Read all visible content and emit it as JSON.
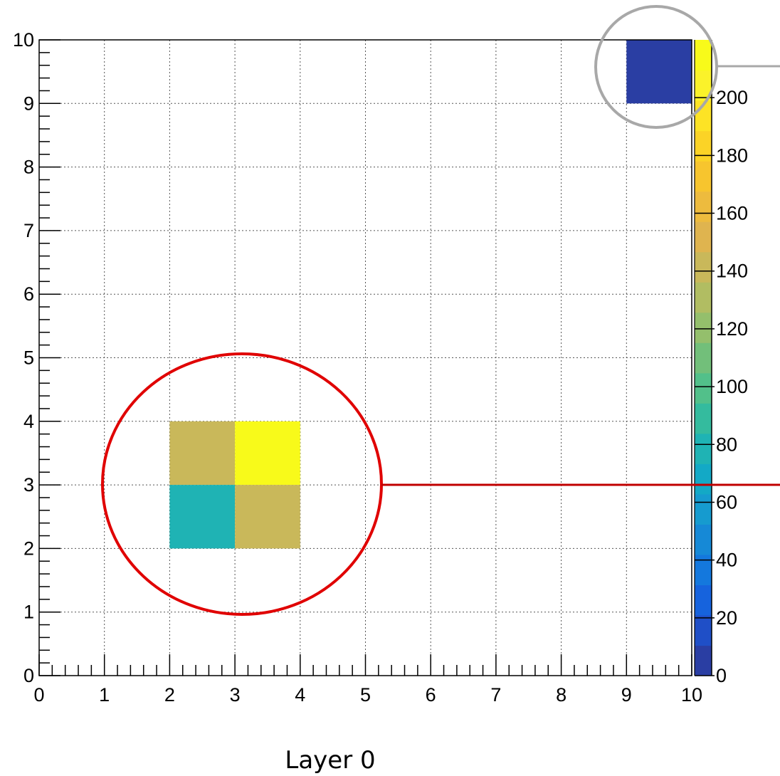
{
  "chart_data": {
    "type": "heatmap",
    "title": "",
    "caption": "Layer 0",
    "xlabel": "",
    "ylabel": "",
    "xlim": [
      0,
      10
    ],
    "ylim": [
      0,
      10
    ],
    "x_ticks": [
      "0",
      "1",
      "2",
      "3",
      "4",
      "5",
      "6",
      "7",
      "8",
      "9",
      "10"
    ],
    "y_ticks": [
      "0",
      "1",
      "2",
      "3",
      "4",
      "5",
      "6",
      "7",
      "8",
      "9",
      "10"
    ],
    "grid": true,
    "cells": [
      {
        "x": [
          2,
          3
        ],
        "y": [
          3,
          4
        ],
        "value": 140
      },
      {
        "x": [
          3,
          4
        ],
        "y": [
          3,
          4
        ],
        "value": 215
      },
      {
        "x": [
          2,
          3
        ],
        "y": [
          2,
          3
        ],
        "value": 75
      },
      {
        "x": [
          3,
          4
        ],
        "y": [
          2,
          3
        ],
        "value": 140
      },
      {
        "x": [
          9,
          10
        ],
        "y": [
          9,
          10
        ],
        "value": 1
      }
    ],
    "colorbar": {
      "min": 0,
      "max": 220,
      "ticks": [
        "0",
        "20",
        "40",
        "60",
        "80",
        "100",
        "120",
        "140",
        "160",
        "180",
        "200"
      ],
      "palette": [
        "#2a3ea3",
        "#1f4fc7",
        "#1663dd",
        "#1478dd",
        "#1689d6",
        "#169bcf",
        "#13a9c6",
        "#1fb3b4",
        "#34bb9e",
        "#52c08a",
        "#72bf7a",
        "#94bf6c",
        "#b1bd62",
        "#c9b85a",
        "#dfb44f",
        "#edbb3e",
        "#f7c52e",
        "#fbd326",
        "#fde325",
        "#fbf22a",
        "#f8fa1a"
      ]
    },
    "annotations": [
      {
        "shape": "circle",
        "color": "#e00000",
        "encloses": "cells x 2-4, y 2-4"
      },
      {
        "shape": "circle",
        "color": "#a0a0a0",
        "encloses": "cell x 9-10, y 9-10"
      }
    ]
  }
}
